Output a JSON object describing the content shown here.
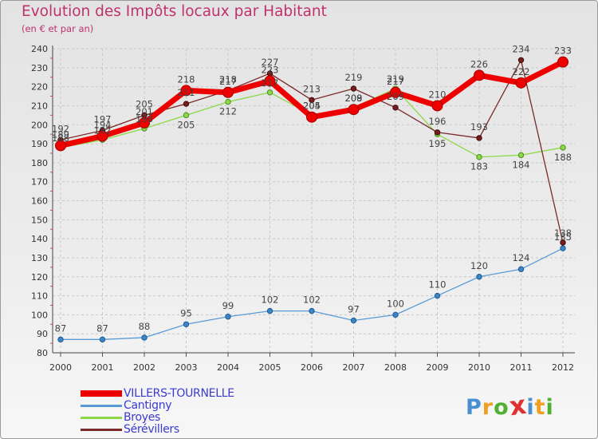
{
  "chart_data": {
    "type": "line",
    "title": "Evolution des Impôts locaux par Habitant",
    "subtitle": "(en € et par an)",
    "xlabel": "",
    "ylabel": "",
    "x": [
      "2000",
      "2001",
      "2002",
      "2003",
      "2004",
      "2005",
      "2006",
      "2007",
      "2008",
      "2009",
      "2010",
      "2011",
      "2012"
    ],
    "ylim": [
      80,
      240
    ],
    "yticks": [
      "80",
      "90",
      "100",
      "110",
      "120",
      "130",
      "140",
      "150",
      "160",
      "170",
      "180",
      "190",
      "200",
      "210",
      "220",
      "230",
      "240"
    ],
    "grid": true,
    "series": [
      {
        "name": "VILLERS-TOURNELLE",
        "color": "#ee0000",
        "values": [
          189,
          194,
          201,
          218,
          217,
          223,
          204,
          208,
          217,
          210,
          226,
          222,
          233
        ]
      },
      {
        "name": "Cantigny",
        "color": "#5b9bd5",
        "values": [
          87,
          87,
          88,
          95,
          99,
          102,
          102,
          97,
          100,
          110,
          120,
          124,
          135
        ]
      },
      {
        "name": "Broyes",
        "color": "#8cd848",
        "values": [
          188,
          192,
          198,
          205,
          212,
          217,
          205,
          209,
          219,
          195,
          183,
          184,
          188
        ]
      },
      {
        "name": "Sérévillers",
        "color": "#7a2a2a",
        "values": [
          192,
          197,
          205,
          211,
          218,
          227,
          213,
          219,
          209,
          196,
          193,
          234,
          138
        ]
      }
    ]
  },
  "logo": {
    "text": "Proxiti",
    "colors": [
      "#4a90d0",
      "#f0a020",
      "#50b030",
      "#e03030",
      "#4a90d0",
      "#f0a020",
      "#50b030"
    ]
  }
}
